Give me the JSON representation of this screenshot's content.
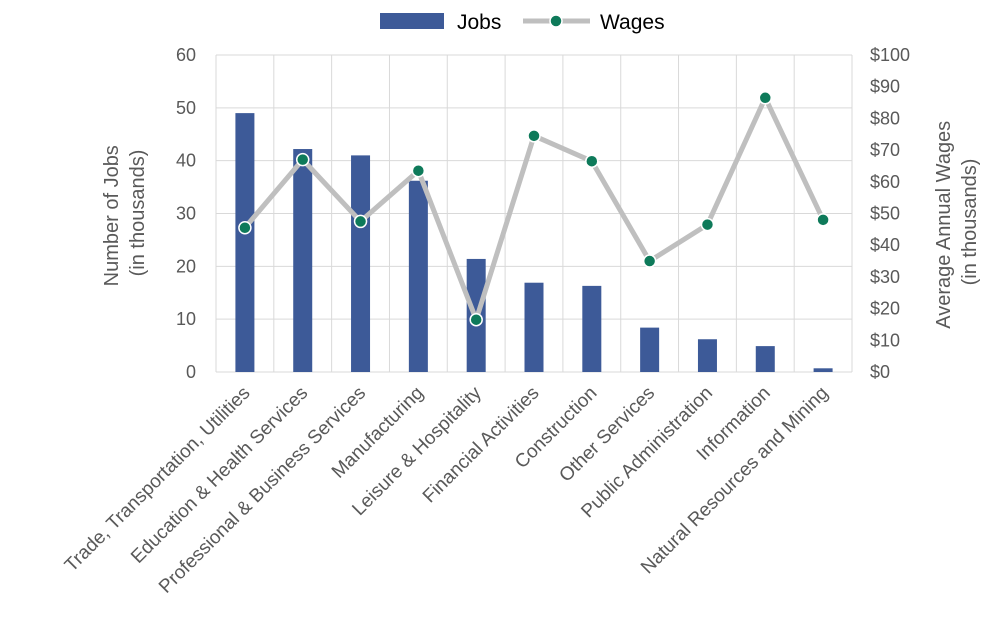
{
  "chart_data": {
    "type": "bar",
    "categories": [
      "Trade, Transportation,  Utilities",
      "Education & Health Services",
      "Professional & Business Services",
      "Manufacturing",
      "Leisure & Hospitality",
      "Financial Activities",
      "Construction",
      "Other Services",
      "Public Administration",
      "Information",
      "Natural Resources and Mining"
    ],
    "series": [
      {
        "name": "Jobs",
        "type": "bar",
        "axis": "left",
        "color": "#3d5a98",
        "values": [
          49,
          42.2,
          41,
          36.2,
          21.4,
          16.9,
          16.3,
          8.4,
          6.2,
          4.9,
          0.7
        ]
      },
      {
        "name": "Wages",
        "type": "line",
        "axis": "right",
        "color": "#bfbfbf",
        "marker_color": "#0e7a5a",
        "values": [
          45.5,
          67,
          47.5,
          63.5,
          16.5,
          74.5,
          66.5,
          35,
          46.5,
          86.5,
          48
        ]
      }
    ],
    "title": "",
    "ylabel_left": [
      "Number of Jobs",
      "(in thousands)"
    ],
    "ylabel_right": [
      "Average Annual Wages",
      "(in thousands)"
    ],
    "ylim_left": [
      0,
      60
    ],
    "ylim_right": [
      0,
      100
    ],
    "yticks_left": [
      "0",
      "10",
      "20",
      "30",
      "40",
      "50",
      "60"
    ],
    "yticks_right": [
      "$0",
      "$10",
      "$20",
      "$30",
      "$40",
      "$50",
      "$60",
      "$70",
      "$80",
      "$90",
      "$100"
    ],
    "grid": true,
    "legend": "top-center"
  }
}
